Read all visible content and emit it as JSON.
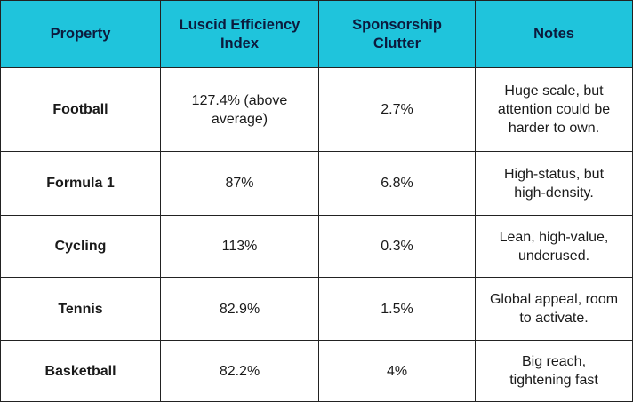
{
  "table": {
    "headers": [
      "Property",
      "Luscid Efficiency Index",
      "Sponsorship Clutter",
      "Notes"
    ],
    "rows": [
      {
        "property": "Football",
        "efficiency": "127.4% (above average)",
        "clutter": "2.7%",
        "notes": "Huge scale, but attention could be harder to own."
      },
      {
        "property": "Formula 1",
        "efficiency": "87%",
        "clutter": "6.8%",
        "notes": "High-status, but high-density."
      },
      {
        "property": "Cycling",
        "efficiency": "113%",
        "clutter": "0.3%",
        "notes": "Lean, high-value, underused."
      },
      {
        "property": "Tennis",
        "efficiency": "82.9%",
        "clutter": "1.5%",
        "notes": "Global appeal, room to activate."
      },
      {
        "property": "Basketball",
        "efficiency": "82.2%",
        "clutter": "4%",
        "notes": "Big reach, tightening fast"
      }
    ]
  },
  "colors": {
    "header_background": "#1fc4dc",
    "header_text": "#0c1a3d",
    "border": "#222222"
  }
}
